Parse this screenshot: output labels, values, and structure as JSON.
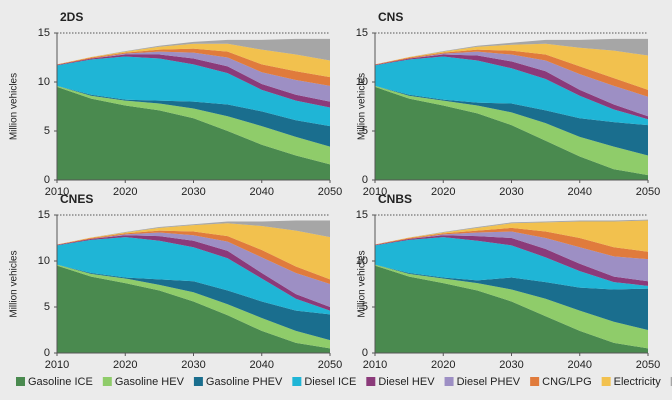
{
  "chart_data": [
    {
      "type": "area",
      "stacked": true,
      "title": "2DS",
      "y_label": "Million vehicles",
      "x": [
        2010,
        2015,
        2020,
        2025,
        2030,
        2035,
        2040,
        2045,
        2050
      ],
      "xlim": [
        2010,
        2050
      ],
      "xticks": [
        2010,
        2020,
        2030,
        2040,
        2050
      ],
      "ylim": [
        0,
        15
      ],
      "yticks": [
        0,
        5,
        10,
        15
      ],
      "series": [
        {
          "name": "Gasoline ICE",
          "color": "#4a8a4f",
          "values": [
            9.5,
            8.3,
            7.6,
            7.1,
            6.3,
            5.0,
            3.6,
            2.5,
            1.6
          ]
        },
        {
          "name": "Gasoline HEV",
          "color": "#8fcc6a",
          "values": [
            0.1,
            0.3,
            0.5,
            0.7,
            1.0,
            1.5,
            1.9,
            1.9,
            1.8
          ]
        },
        {
          "name": "Gasoline PHEV",
          "color": "#1a6e8e",
          "values": [
            0,
            0.1,
            0.1,
            0.3,
            0.7,
            1.2,
            1.5,
            1.7,
            2.1
          ]
        },
        {
          "name": "Diesel ICE",
          "color": "#1fb5d6",
          "values": [
            2.1,
            3.6,
            4.4,
            4.3,
            3.8,
            3.2,
            2.2,
            2.0,
            1.9
          ]
        },
        {
          "name": "Diesel HEV",
          "color": "#8b3a7a",
          "values": [
            0.05,
            0.1,
            0.2,
            0.4,
            0.6,
            0.7,
            0.6,
            0.6,
            0.6
          ]
        },
        {
          "name": "Diesel PHEV",
          "color": "#9d8fc4",
          "values": [
            0,
            0,
            0.1,
            0.3,
            0.6,
            0.9,
            1.2,
            1.5,
            1.6
          ]
        },
        {
          "name": "CNG/LPG",
          "color": "#e07b3c",
          "values": [
            0.05,
            0.1,
            0.1,
            0.2,
            0.4,
            0.6,
            0.8,
            0.9,
            0.9
          ]
        },
        {
          "name": "Electricity",
          "color": "#f2c14e",
          "values": [
            0,
            0.05,
            0.1,
            0.3,
            0.5,
            0.8,
            1.5,
            1.7,
            1.7
          ]
        },
        {
          "name": "Hydrogen FCEV",
          "color": "#a6a6a6",
          "values": [
            0,
            0,
            0.05,
            0.1,
            0.2,
            0.4,
            1.0,
            1.6,
            2.2
          ]
        }
      ]
    },
    {
      "type": "area",
      "stacked": true,
      "title": "CNS",
      "y_label": "Million vehicles",
      "x": [
        2010,
        2015,
        2020,
        2025,
        2030,
        2035,
        2040,
        2045,
        2050
      ],
      "xlim": [
        2010,
        2050
      ],
      "xticks": [
        2010,
        2020,
        2030,
        2040,
        2050
      ],
      "ylim": [
        0,
        15
      ],
      "yticks": [
        0,
        5,
        10,
        15
      ],
      "series": [
        {
          "name": "Gasoline ICE",
          "color": "#4a8a4f",
          "values": [
            9.5,
            8.3,
            7.6,
            6.8,
            5.6,
            4.0,
            2.4,
            1.1,
            0.5
          ]
        },
        {
          "name": "Gasoline HEV",
          "color": "#8fcc6a",
          "values": [
            0.1,
            0.3,
            0.5,
            0.8,
            1.3,
            1.8,
            2.0,
            2.3,
            2.0
          ]
        },
        {
          "name": "Gasoline PHEV",
          "color": "#1a6e8e",
          "values": [
            0,
            0.1,
            0.1,
            0.3,
            0.9,
            1.3,
            1.9,
            2.5,
            3.1
          ]
        },
        {
          "name": "Diesel ICE",
          "color": "#1fb5d6",
          "values": [
            2.1,
            3.6,
            4.4,
            4.3,
            3.6,
            3.2,
            2.3,
            1.3,
            0.6
          ]
        },
        {
          "name": "Diesel HEV",
          "color": "#8b3a7a",
          "values": [
            0.05,
            0.1,
            0.2,
            0.5,
            0.7,
            0.8,
            0.6,
            0.5,
            0.3
          ]
        },
        {
          "name": "Diesel PHEV",
          "color": "#9d8fc4",
          "values": [
            0,
            0,
            0.1,
            0.4,
            0.7,
            1.1,
            1.6,
            1.9,
            2.0
          ]
        },
        {
          "name": "CNG/LPG",
          "color": "#e07b3c",
          "values": [
            0.05,
            0.1,
            0.1,
            0.2,
            0.4,
            0.6,
            0.8,
            0.8,
            0.7
          ]
        },
        {
          "name": "Electricity",
          "color": "#f2c14e",
          "values": [
            0,
            0.05,
            0.1,
            0.3,
            0.6,
            1.1,
            1.9,
            2.8,
            3.5
          ]
        },
        {
          "name": "Hydrogen FCEV",
          "color": "#a6a6a6",
          "values": [
            0,
            0,
            0.05,
            0.1,
            0.2,
            0.4,
            0.8,
            1.2,
            1.7
          ]
        }
      ]
    },
    {
      "type": "area",
      "stacked": true,
      "title": "CNES",
      "y_label": "Million vehicles",
      "x": [
        2010,
        2015,
        2020,
        2025,
        2030,
        2035,
        2040,
        2045,
        2050
      ],
      "xlim": [
        2010,
        2050
      ],
      "xticks": [
        2010,
        2020,
        2030,
        2040,
        2050
      ],
      "ylim": [
        0,
        15
      ],
      "yticks": [
        0,
        5,
        10,
        15
      ],
      "series": [
        {
          "name": "Gasoline ICE",
          "color": "#4a8a4f",
          "values": [
            9.5,
            8.3,
            7.6,
            6.8,
            5.6,
            4.1,
            2.4,
            1.1,
            0.5
          ]
        },
        {
          "name": "Gasoline HEV",
          "color": "#8fcc6a",
          "values": [
            0.1,
            0.3,
            0.5,
            0.6,
            1.0,
            1.2,
            1.4,
            1.3,
            0.9
          ]
        },
        {
          "name": "Gasoline PHEV",
          "color": "#1a6e8e",
          "values": [
            0,
            0.1,
            0.1,
            0.6,
            1.2,
            1.5,
            1.8,
            2.2,
            2.8
          ]
        },
        {
          "name": "Diesel ICE",
          "color": "#1fb5d6",
          "values": [
            2.1,
            3.6,
            4.4,
            4.2,
            3.7,
            3.5,
            2.5,
            1.3,
            0.4
          ]
        },
        {
          "name": "Diesel HEV",
          "color": "#8b3a7a",
          "values": [
            0.05,
            0.1,
            0.2,
            0.5,
            0.7,
            0.8,
            0.6,
            0.5,
            0.4
          ]
        },
        {
          "name": "Diesel PHEV",
          "color": "#9d8fc4",
          "values": [
            0,
            0,
            0.1,
            0.4,
            0.6,
            1.0,
            1.7,
            2.3,
            2.5
          ]
        },
        {
          "name": "CNG/LPG",
          "color": "#e07b3c",
          "values": [
            0.05,
            0.1,
            0.1,
            0.2,
            0.4,
            0.6,
            0.8,
            0.7,
            0.5
          ]
        },
        {
          "name": "Electricity",
          "color": "#f2c14e",
          "values": [
            0,
            0.05,
            0.1,
            0.3,
            0.7,
            1.4,
            2.6,
            3.9,
            4.6
          ]
        },
        {
          "name": "Hydrogen FCEV",
          "color": "#a6a6a6",
          "values": [
            0,
            0,
            0.05,
            0.1,
            0.1,
            0.2,
            0.5,
            1.1,
            1.8
          ]
        }
      ]
    },
    {
      "type": "area",
      "stacked": true,
      "title": "CNBS",
      "y_label": "Million vehicles",
      "x": [
        2010,
        2015,
        2020,
        2025,
        2030,
        2035,
        2040,
        2045,
        2050
      ],
      "xlim": [
        2010,
        2050
      ],
      "xticks": [
        2010,
        2020,
        2030,
        2040,
        2050
      ],
      "ylim": [
        0,
        15
      ],
      "yticks": [
        0,
        5,
        10,
        15
      ],
      "series": [
        {
          "name": "Gasoline ICE",
          "color": "#4a8a4f",
          "values": [
            9.5,
            8.3,
            7.6,
            6.8,
            5.6,
            4.0,
            2.4,
            1.1,
            0.5
          ]
        },
        {
          "name": "Gasoline HEV",
          "color": "#8fcc6a",
          "values": [
            0.1,
            0.3,
            0.5,
            0.8,
            1.3,
            1.9,
            2.2,
            2.3,
            2.0
          ]
        },
        {
          "name": "Gasoline PHEV",
          "color": "#1a6e8e",
          "values": [
            0,
            0.1,
            0.1,
            0.3,
            1.3,
            1.8,
            2.5,
            3.5,
            4.5
          ]
        },
        {
          "name": "Diesel ICE",
          "color": "#1fb5d6",
          "values": [
            2.1,
            3.6,
            4.4,
            4.3,
            3.5,
            2.7,
            1.8,
            0.8,
            0.3
          ]
        },
        {
          "name": "Diesel HEV",
          "color": "#8b3a7a",
          "values": [
            0.05,
            0.1,
            0.2,
            0.5,
            0.8,
            0.9,
            0.8,
            0.6,
            0.5
          ]
        },
        {
          "name": "Diesel PHEV",
          "color": "#9d8fc4",
          "values": [
            0,
            0,
            0.1,
            0.4,
            0.7,
            1.2,
            1.8,
            2.2,
            2.4
          ]
        },
        {
          "name": "CNG/LPG",
          "color": "#e07b3c",
          "values": [
            0.05,
            0.1,
            0.1,
            0.2,
            0.4,
            0.7,
            1.0,
            1.0,
            0.8
          ]
        },
        {
          "name": "Electricity",
          "color": "#f2c14e",
          "values": [
            0,
            0.05,
            0.1,
            0.3,
            0.5,
            1.0,
            1.8,
            2.8,
            3.4
          ]
        },
        {
          "name": "Hydrogen FCEV",
          "color": "#a6a6a6",
          "values": [
            0,
            0,
            0.05,
            0.1,
            0.1,
            0.1,
            0.1,
            0.1,
            0.1
          ]
        }
      ]
    }
  ]
}
